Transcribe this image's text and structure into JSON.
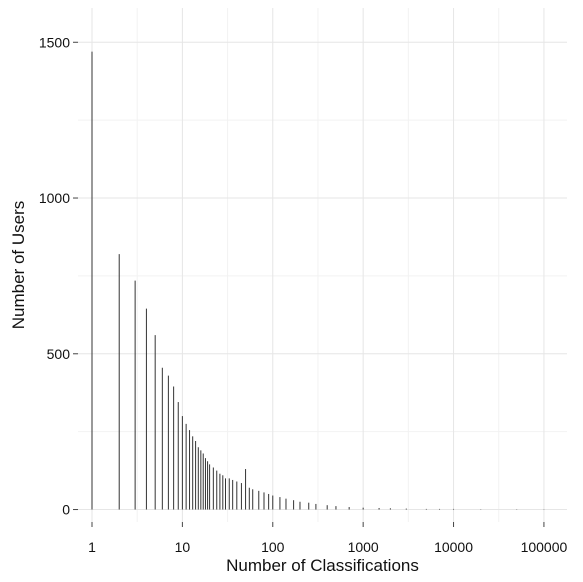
{
  "chart_data": {
    "type": "bar",
    "title": "",
    "xlabel": "Number of Classifications",
    "ylabel": "Number of Users",
    "x_scale": "log10",
    "xlim": [
      0.7,
      180000
    ],
    "ylim": [
      -40,
      1610
    ],
    "x_ticks": [
      1,
      10,
      100,
      1000,
      10000,
      100000
    ],
    "x_tick_labels": [
      "1",
      "10",
      "100",
      "1000",
      "10000",
      "100000"
    ],
    "y_ticks": [
      0,
      500,
      1000,
      1500
    ],
    "y_tick_labels": [
      "0",
      "500",
      "1000",
      "1500"
    ],
    "grid": true,
    "x": [
      1,
      2,
      3,
      4,
      5,
      6,
      7,
      8,
      9,
      10,
      11,
      12,
      13,
      14,
      15,
      16,
      17,
      18,
      19,
      20,
      22,
      24,
      26,
      28,
      30,
      33,
      36,
      40,
      45,
      50,
      55,
      60,
      70,
      80,
      90,
      100,
      120,
      140,
      170,
      200,
      250,
      300,
      400,
      500,
      700,
      1000,
      1500,
      2000,
      3000,
      5000,
      7000,
      10000,
      20000,
      50000,
      100000
    ],
    "values": [
      1470,
      820,
      735,
      645,
      560,
      455,
      430,
      395,
      345,
      300,
      275,
      255,
      235,
      220,
      200,
      190,
      180,
      165,
      155,
      145,
      135,
      125,
      115,
      110,
      100,
      100,
      95,
      90,
      85,
      130,
      70,
      65,
      60,
      55,
      50,
      45,
      40,
      35,
      30,
      25,
      22,
      18,
      14,
      11,
      8,
      6,
      5,
      4,
      3,
      2,
      2,
      2,
      1,
      1,
      1
    ]
  }
}
